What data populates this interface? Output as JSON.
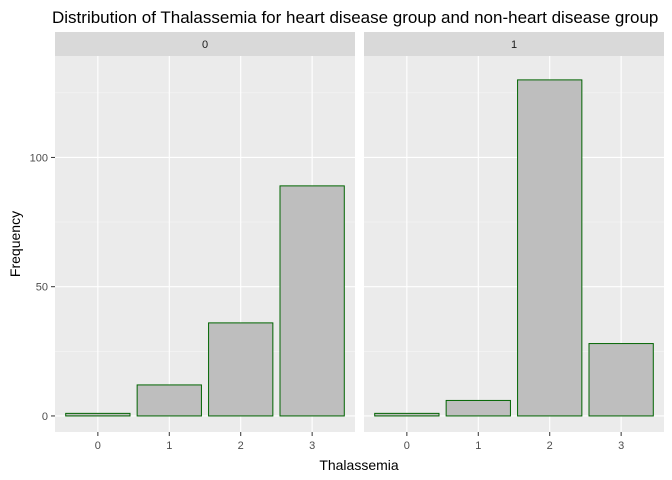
{
  "chart_data": {
    "type": "bar",
    "title": "Distribution of Thalassemia for heart disease group and non-heart disease group",
    "xlabel": "Thalassemia",
    "ylabel": "Frequency",
    "categories": [
      "0",
      "1",
      "2",
      "3"
    ],
    "ylim": [
      0,
      138
    ],
    "y_ticks": [
      0,
      50,
      100
    ],
    "grid": true,
    "facets": [
      {
        "label": "0",
        "values": [
          1,
          12,
          36,
          89
        ]
      },
      {
        "label": "1",
        "values": [
          1,
          6,
          130,
          28
        ]
      }
    ],
    "colors": {
      "bar_fill": "#bebebe",
      "bar_outline": "#006400",
      "panel_background": "#ebebeb",
      "strip_background": "#d9d9d9",
      "grid_major": "#ffffff"
    }
  }
}
